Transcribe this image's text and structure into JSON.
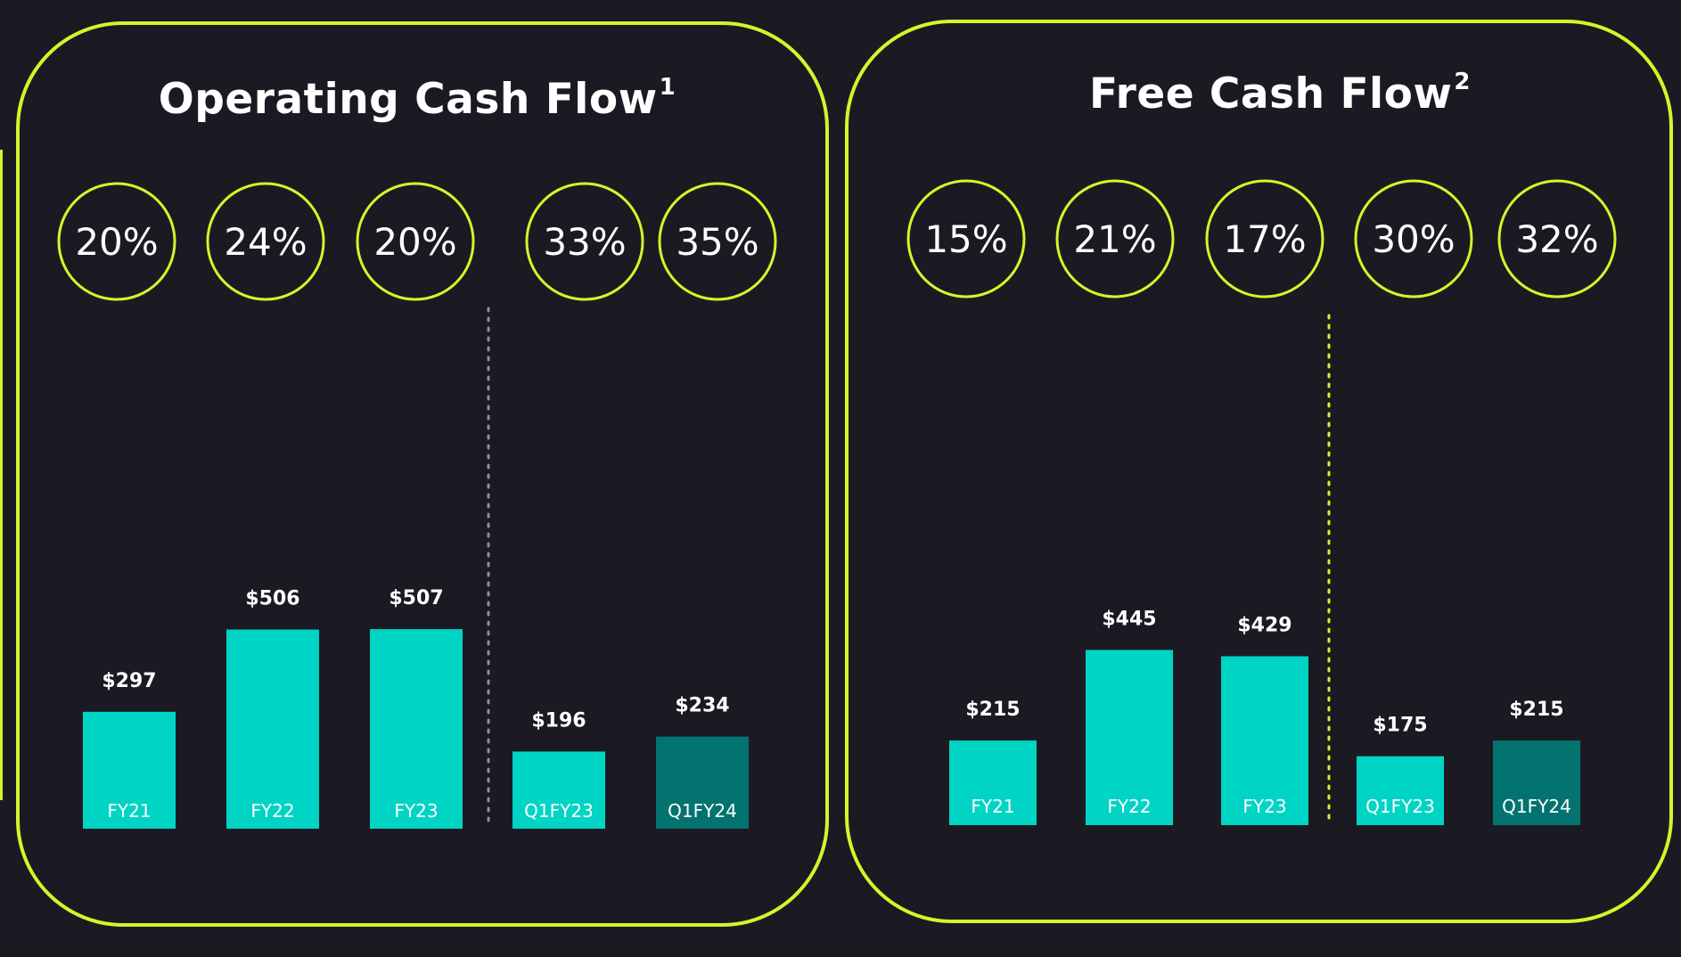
{
  "colors": {
    "background": "#1b1a22",
    "accent": "#d4f52a",
    "bar": "#00d4c4",
    "bar_highlight": "#037370",
    "text": "#ffffff",
    "divider_left": "#8f8f9a",
    "divider_right": "#d4f52a"
  },
  "chart_data": [
    {
      "type": "bar",
      "title": "Operating Cash Flow",
      "title_footnote": "1",
      "categories": [
        "FY21",
        "FY22",
        "FY23",
        "Q1FY23",
        "Q1FY24"
      ],
      "values": [
        297,
        506,
        507,
        196,
        234
      ],
      "value_labels": [
        "$297",
        "$506",
        "$507",
        "$196",
        "$234"
      ],
      "margins": [
        "20%",
        "24%",
        "20%",
        "33%",
        "35%"
      ],
      "highlight": "Q1FY24",
      "divider_after": "FY23",
      "ylim": [
        0,
        600
      ],
      "xlabel": "",
      "ylabel": "",
      "grid": false
    },
    {
      "type": "bar",
      "title": "Free Cash Flow",
      "title_footnote": "2",
      "categories": [
        "FY21",
        "FY22",
        "FY23",
        "Q1FY23",
        "Q1FY24"
      ],
      "values": [
        215,
        445,
        429,
        175,
        215
      ],
      "value_labels": [
        "$215",
        "$445",
        "$429",
        "$175",
        "$215"
      ],
      "margins": [
        "15%",
        "21%",
        "17%",
        "30%",
        "32%"
      ],
      "highlight": "Q1FY24",
      "divider_after": "FY23",
      "ylim": [
        0,
        600
      ],
      "xlabel": "",
      "ylabel": "",
      "grid": false
    }
  ]
}
